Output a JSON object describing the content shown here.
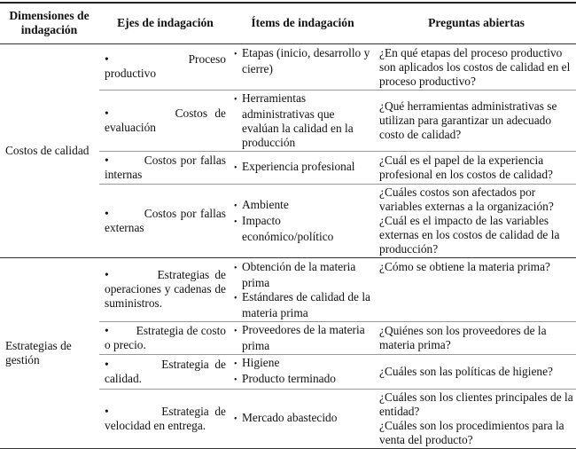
{
  "headers": [
    "Dimensiones de indagación",
    "Ejes de indagación",
    "Ítems de indagación",
    "Preguntas abiertas"
  ],
  "groups": [
    {
      "dimension": "Costos de calidad",
      "rows": [
        {
          "eje_first": "Proceso",
          "eje_rest": "productivo",
          "items": [
            "Etapas (inicio, desarrollo y cierre)"
          ],
          "preguntas": [
            "¿En qué etapas del proceso productivo son aplicados los costos de calidad en el proceso productivo?"
          ]
        },
        {
          "eje_first": "Costos de",
          "eje_rest": "evaluación",
          "items": [
            "Herramientas administrativas que evalúan la calidad en la producción"
          ],
          "preguntas": [
            "¿Qué herramientas administrativas se utilizan para garantizar un adecuado costo de calidad?"
          ]
        },
        {
          "eje_first": "Costos por",
          "eje_rest": "fallas internas",
          "items": [
            "Experiencia profesional"
          ],
          "preguntas": [
            "¿Cuál es el papel de la experiencia profesional en los costos de calidad?"
          ]
        },
        {
          "eje_first": "Costos por",
          "eje_rest": "fallas externas",
          "items": [
            "Ambiente",
            "Impacto económico/político"
          ],
          "preguntas": [
            "¿Cuáles costos son afectados por variables externas a la organización?",
            "¿Cuál es el impacto de las variables externas en los costos de calidad de la producción?"
          ]
        }
      ]
    },
    {
      "dimension": "Estrategias de gestión",
      "rows": [
        {
          "eje_first": "Estrategias",
          "eje_rest": "de operaciones y cadenas de suministros.",
          "items": [
            "Obtención de la materia prima",
            "Estándares de calidad de la materia prima"
          ],
          "preguntas": [
            "¿Cómo se obtiene la materia prima?"
          ]
        },
        {
          "eje_first": "Estrategia de",
          "eje_rest": "costo o precio.",
          "items": [
            "Proveedores de la materia prima"
          ],
          "preguntas": [
            "¿Quiénes son los proveedores de la materia prima?"
          ]
        },
        {
          "eje_first": "Estrategia de",
          "eje_rest": "calidad.",
          "items": [
            "Higiene",
            "Producto terminado"
          ],
          "preguntas": [
            "¿Cuáles son las políticas de higiene?"
          ]
        },
        {
          "eje_first": "Estrategia de",
          "eje_rest": "velocidad en entrega.",
          "items": [
            "Mercado abastecido"
          ],
          "preguntas": [
            "¿Cuáles son los clientes principales de la entidad?",
            "¿Cuáles son los procedimientos para la venta del producto?"
          ]
        }
      ]
    }
  ]
}
